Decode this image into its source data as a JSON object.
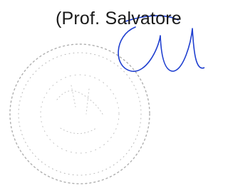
{
  "signature_block": {
    "name": "(Prof. Salvatore"
  }
}
